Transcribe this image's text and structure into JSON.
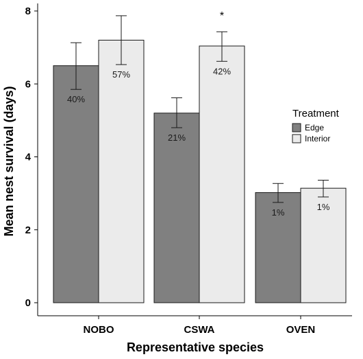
{
  "chart_data": {
    "type": "bar",
    "title": "",
    "xlabel": "Representative species",
    "ylabel": "Mean nest survival (days)",
    "ylim": [
      0,
      8.15
    ],
    "yticks": [
      0,
      2,
      4,
      6,
      8
    ],
    "categories": [
      "NOBO",
      "CSWA",
      "OVEN"
    ],
    "legend": {
      "title": "Treatment",
      "position": "right"
    },
    "series": [
      {
        "name": "Edge",
        "color": "#808080",
        "values": [
          6.5,
          5.2,
          3.02
        ],
        "error_low": [
          5.85,
          4.8,
          2.75
        ],
        "error_high": [
          7.13,
          5.62,
          3.27
        ],
        "labels": [
          "40%",
          "21%",
          "1%"
        ]
      },
      {
        "name": "Interior",
        "color": "#ebebeb",
        "values": [
          7.2,
          7.04,
          3.14
        ],
        "error_low": [
          6.53,
          6.62,
          2.9
        ],
        "error_high": [
          7.87,
          7.43,
          3.36
        ],
        "labels": [
          "57%",
          "42%",
          "1%"
        ]
      }
    ],
    "annotations": [
      {
        "category": "CSWA",
        "text": "*"
      }
    ],
    "grid": false
  }
}
